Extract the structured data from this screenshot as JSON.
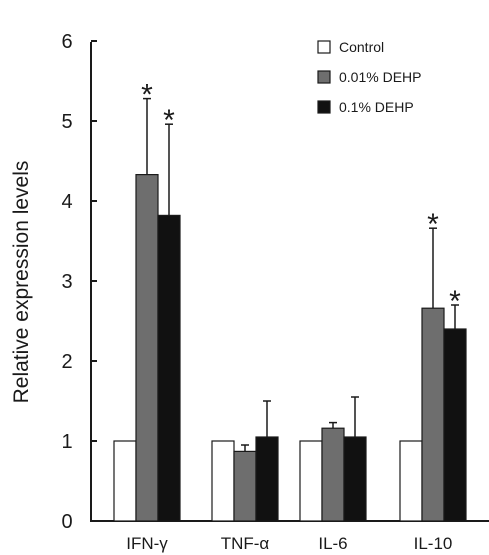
{
  "chart_data": {
    "type": "bar",
    "title": "",
    "xlabel": "",
    "ylabel": "Relative expression levels",
    "ylim": [
      0,
      6
    ],
    "yticks": [
      0,
      1,
      2,
      3,
      4,
      5,
      6
    ],
    "grid": false,
    "legend_position": "top-right",
    "categories": [
      "IFN-γ",
      "TNF-α",
      "IL-6",
      "IL-10"
    ],
    "series": [
      {
        "name": "Control",
        "color": "#ffffff",
        "values": [
          1.0,
          1.0,
          1.0,
          1.0
        ],
        "errors": [
          0,
          0,
          0,
          0
        ],
        "significant": [
          false,
          false,
          false,
          false
        ]
      },
      {
        "name": "0.01% DEHP",
        "color": "#6e6e6e",
        "values": [
          4.33,
          0.87,
          1.16,
          2.66
        ],
        "errors": [
          0.95,
          0.08,
          0.07,
          1.0
        ],
        "significant": [
          true,
          false,
          false,
          true
        ]
      },
      {
        "name": "0.1% DEHP",
        "color": "#111111",
        "values": [
          3.82,
          1.05,
          1.05,
          2.4
        ],
        "errors": [
          1.14,
          0.45,
          0.5,
          0.3
        ],
        "significant": [
          true,
          false,
          false,
          true
        ]
      }
    ],
    "annotation_mark": "*"
  }
}
